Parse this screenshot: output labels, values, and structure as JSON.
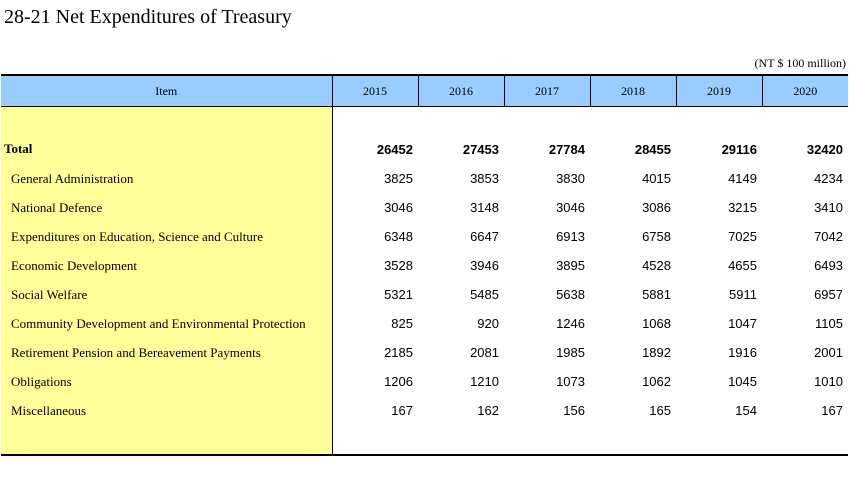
{
  "title": "28-21  Net Expenditures of Treasury",
  "unit": "(NT $ 100 million)",
  "table": {
    "item_header": "Item",
    "years": [
      "2015",
      "2016",
      "2017",
      "2018",
      "2019",
      "2020"
    ],
    "total": {
      "label": "Total",
      "values": [
        "26452",
        "27453",
        "27784",
        "28455",
        "29116",
        "32420"
      ]
    },
    "rows": [
      {
        "label": "General Administration",
        "values": [
          "3825",
          "3853",
          "3830",
          "4015",
          "4149",
          "4234"
        ]
      },
      {
        "label": "National Defence",
        "values": [
          "3046",
          "3148",
          "3046",
          "3086",
          "3215",
          "3410"
        ]
      },
      {
        "label": "Expenditures on Education, Science and Culture",
        "values": [
          "6348",
          "6647",
          "6913",
          "6758",
          "7025",
          "7042"
        ]
      },
      {
        "label": "Economic Development",
        "values": [
          "3528",
          "3946",
          "3895",
          "4528",
          "4655",
          "6493"
        ]
      },
      {
        "label": "Social Welfare",
        "values": [
          "5321",
          "5485",
          "5638",
          "5881",
          "5911",
          "6957"
        ]
      },
      {
        "label": "Community Development and Environmental Protection",
        "values": [
          "825",
          "920",
          "1246",
          "1068",
          "1047",
          "1105"
        ]
      },
      {
        "label": "Retirement Pension and Bereavement Payments",
        "values": [
          "2185",
          "2081",
          "1985",
          "1892",
          "1916",
          "2001"
        ]
      },
      {
        "label": "Obligations",
        "values": [
          "1206",
          "1210",
          "1073",
          "1062",
          "1045",
          "1010"
        ]
      },
      {
        "label": "Miscellaneous",
        "values": [
          "167",
          "162",
          "156",
          "165",
          "154",
          "167"
        ]
      }
    ]
  }
}
